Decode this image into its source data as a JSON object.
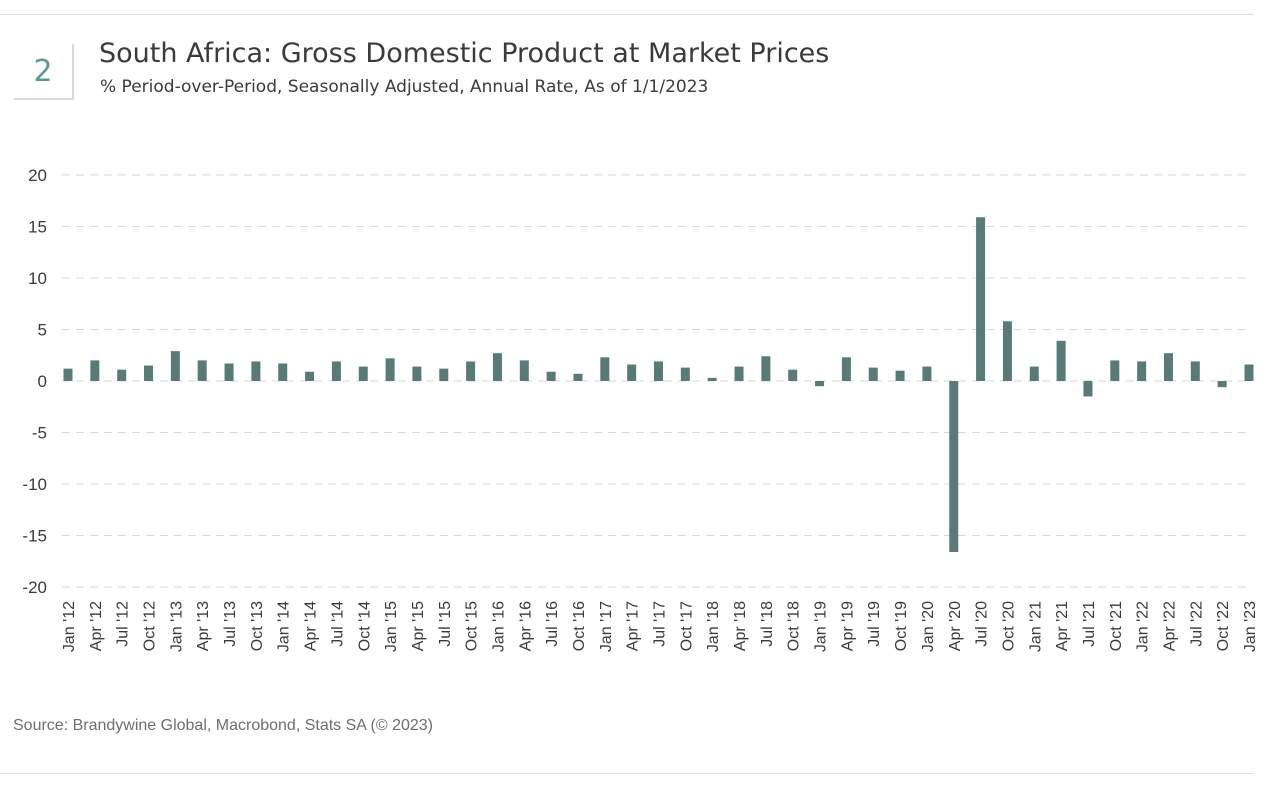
{
  "header": {
    "figure_number": "2",
    "title": "South Africa: Gross Domestic Product at Market Prices",
    "subtitle": "% Period-over-Period, Seasonally Adjusted, Annual Rate, As of 1/1/2023"
  },
  "footer": {
    "source": "Source: Brandywine Global, Macrobond, Stats SA (© 2023)"
  },
  "chart_data": {
    "type": "bar",
    "title": "South Africa: Gross Domestic Product at Market Prices",
    "subtitle": "% Period-over-Period, Seasonally Adjusted, Annual Rate, As of 1/1/2023",
    "xlabel": "",
    "ylabel": "",
    "ylim": [
      -20,
      20
    ],
    "yticks": [
      20,
      15,
      10,
      5,
      0,
      -5,
      -10,
      -15,
      -20
    ],
    "grid": true,
    "legend": "none",
    "bar_color": "#5a7a78",
    "categories": [
      "Jan '12",
      "Apr '12",
      "Jul '12",
      "Oct '12",
      "Jan '13",
      "Apr '13",
      "Jul '13",
      "Oct '13",
      "Jan '14",
      "Apr '14",
      "Jul '14",
      "Oct '14",
      "Jan '15",
      "Apr '15",
      "Jul '15",
      "Oct '15",
      "Jan '16",
      "Apr '16",
      "Jul '16",
      "Oct '16",
      "Jan '17",
      "Apr '17",
      "Jul '17",
      "Oct '17",
      "Jan '18",
      "Apr '18",
      "Jul '18",
      "Oct '18",
      "Jan '19",
      "Apr '19",
      "Jul '19",
      "Oct '19",
      "Jan '20",
      "Apr '20",
      "Jul '20",
      "Oct '20",
      "Jan '21",
      "Apr '21",
      "Jul '21",
      "Oct '21",
      "Jan '22",
      "Apr '22",
      "Jul '22",
      "Oct '22",
      "Jan '23"
    ],
    "values": [
      1.2,
      2.0,
      1.1,
      1.5,
      2.9,
      2.0,
      1.7,
      1.9,
      1.7,
      0.9,
      1.9,
      1.4,
      2.2,
      1.4,
      1.2,
      1.9,
      2.7,
      2.0,
      0.9,
      0.7,
      2.3,
      1.6,
      1.9,
      1.3,
      0.3,
      1.4,
      2.4,
      1.1,
      -0.5,
      2.3,
      1.3,
      1.0,
      1.4,
      -16.6,
      15.9,
      5.8,
      1.4,
      3.9,
      -1.5,
      2.0,
      1.9,
      2.7,
      1.9,
      -0.6,
      1.6
    ]
  }
}
